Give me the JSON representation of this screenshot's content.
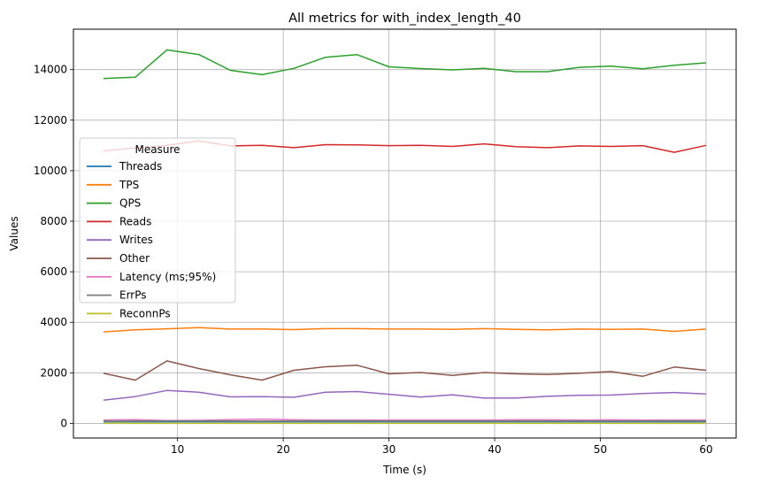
{
  "chart_data": {
    "type": "line",
    "title": "All metrics for with_index_length_40",
    "xlabel": "Time (s)",
    "ylabel": "Values",
    "xlim": [
      0.15,
      62.85
    ],
    "ylim": [
      -580,
      15600
    ],
    "xticks": [
      10,
      20,
      30,
      40,
      50,
      60
    ],
    "yticks": [
      0,
      2000,
      4000,
      6000,
      8000,
      10000,
      12000,
      14000
    ],
    "grid": true,
    "legend": {
      "title": "Measure",
      "position": "center-left"
    },
    "x": [
      3,
      6,
      9,
      12,
      15,
      18,
      21,
      24,
      27,
      30,
      33,
      36,
      39,
      42,
      45,
      48,
      51,
      54,
      57,
      60
    ],
    "series": [
      {
        "name": "Threads",
        "color": "#1f77b4",
        "values": [
          64,
          64,
          64,
          64,
          64,
          64,
          64,
          64,
          64,
          64,
          64,
          64,
          64,
          64,
          64,
          64,
          64,
          64,
          64,
          64
        ]
      },
      {
        "name": "TPS",
        "color": "#ff7f0e",
        "values": [
          3620,
          3700,
          3740,
          3790,
          3730,
          3730,
          3710,
          3750,
          3750,
          3730,
          3730,
          3720,
          3750,
          3720,
          3700,
          3730,
          3720,
          3730,
          3640,
          3730
        ]
      },
      {
        "name": "QPS",
        "color": "#2ca02c",
        "values": [
          13650,
          13700,
          14780,
          14600,
          13970,
          13800,
          14050,
          14490,
          14590,
          14110,
          14040,
          13990,
          14050,
          13920,
          13920,
          14090,
          14140,
          14030,
          14170,
          14270
        ]
      },
      {
        "name": "Reads",
        "color": "#d62728",
        "values": [
          10780,
          10900,
          11000,
          11180,
          10980,
          11000,
          10910,
          11030,
          11020,
          10990,
          11000,
          10960,
          11060,
          10950,
          10910,
          10980,
          10960,
          10990,
          10730,
          11000
        ]
      },
      {
        "name": "Writes",
        "color": "#9467bd",
        "values": [
          920,
          1060,
          1300,
          1230,
          1050,
          1060,
          1030,
          1230,
          1260,
          1150,
          1040,
          1130,
          1000,
          1000,
          1070,
          1110,
          1120,
          1180,
          1220,
          1160
        ]
      },
      {
        "name": "Other",
        "color": "#8c564b",
        "values": [
          1980,
          1710,
          2470,
          2170,
          1920,
          1710,
          2100,
          2240,
          2300,
          1960,
          2010,
          1900,
          2010,
          1960,
          1930,
          1980,
          2050,
          1860,
          2230,
          2100
        ]
      },
      {
        "name": "Latency (ms;95%)",
        "color": "#e377c2",
        "values": [
          130,
          150,
          110,
          120,
          150,
          170,
          140,
          130,
          130,
          130,
          130,
          130,
          130,
          140,
          140,
          130,
          140,
          130,
          130,
          130
        ]
      },
      {
        "name": "ErrPs",
        "color": "#7f7f7f",
        "values": [
          90,
          95,
          100,
          100,
          95,
          90,
          95,
          100,
          100,
          95,
          95,
          95,
          95,
          95,
          95,
          95,
          95,
          95,
          100,
          95
        ]
      },
      {
        "name": "ReconnPs",
        "color": "#bcbd22",
        "values": [
          0,
          0,
          0,
          0,
          0,
          0,
          0,
          0,
          0,
          0,
          0,
          0,
          0,
          0,
          0,
          0,
          0,
          0,
          0,
          0
        ]
      }
    ]
  }
}
